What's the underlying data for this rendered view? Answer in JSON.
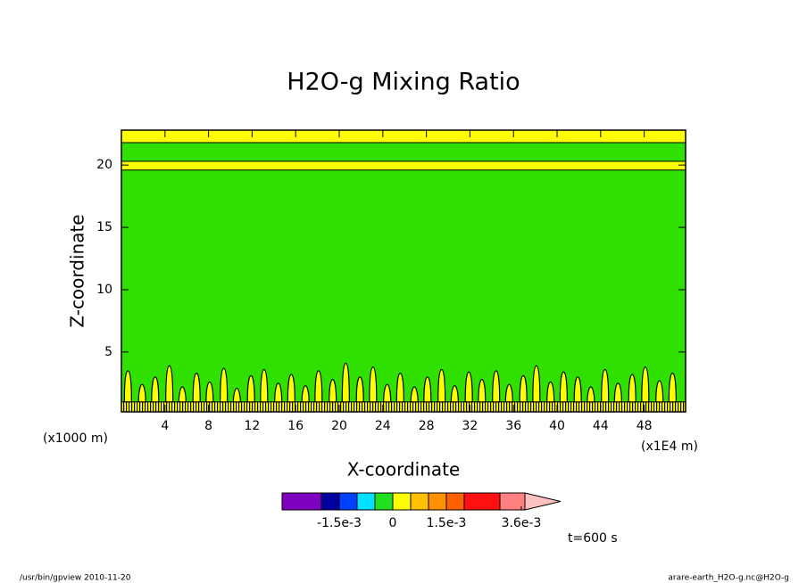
{
  "chart_data": {
    "type": "contour",
    "title": "H2O-g Mixing Ratio",
    "xlabel": "X-coordinate",
    "ylabel": "Z-coordinate",
    "xunit": "(x1000 m)",
    "xscale_note": "(x1E4 m)",
    "xlim": [
      0,
      51.8
    ],
    "ylim": [
      0.2,
      22.8
    ],
    "xticks": [
      4,
      8,
      12,
      16,
      20,
      24,
      28,
      32,
      36,
      40,
      44,
      48
    ],
    "yticks": [
      5,
      10,
      15,
      20
    ],
    "background_color": "#30e000",
    "bands": [
      {
        "y": [
          0.2,
          1.0
        ],
        "color": "#ffff00",
        "hatched": true
      },
      {
        "y": [
          19.6,
          20.3
        ],
        "color": "#ffff00",
        "hatched": false
      },
      {
        "y": [
          21.8,
          22.8
        ],
        "color": "#ffff00",
        "hatched": false
      }
    ],
    "plumes": {
      "color": "#ffff00",
      "x": [
        0.6,
        1.9,
        3.1,
        4.4,
        5.6,
        6.9,
        8.1,
        9.4,
        10.6,
        11.9,
        13.1,
        14.4,
        15.6,
        16.9,
        18.1,
        19.4,
        20.6,
        21.9,
        23.1,
        24.4,
        25.6,
        26.9,
        28.1,
        29.4,
        30.6,
        31.9,
        33.1,
        34.4,
        35.6,
        36.9,
        38.1,
        39.4,
        40.6,
        41.9,
        43.1,
        44.4,
        45.6,
        46.9,
        48.1,
        49.4,
        50.6
      ],
      "height": [
        3.5,
        2.4,
        3.0,
        3.9,
        2.2,
        3.3,
        2.6,
        3.7,
        2.1,
        3.1,
        3.6,
        2.5,
        3.2,
        2.3,
        3.5,
        2.8,
        4.1,
        3.0,
        3.8,
        2.4,
        3.3,
        2.2,
        3.0,
        3.6,
        2.3,
        3.4,
        2.8,
        3.5,
        2.4,
        3.1,
        3.9,
        2.6,
        3.4,
        3.0,
        2.2,
        3.6,
        2.5,
        3.2,
        3.8,
        2.7,
        3.3
      ]
    },
    "colorbar": {
      "bounds": [
        -0.0031,
        -0.002,
        -0.0015,
        -0.001,
        -0.0005,
        0,
        0.0005,
        0.001,
        0.0015,
        0.002,
        0.003,
        0.0037
      ],
      "colors": [
        "#8000c0",
        "#0000a0",
        "#0040ff",
        "#00e0ff",
        "#20e020",
        "#ffff00",
        "#ffc000",
        "#ff9000",
        "#ff6000",
        "#ff1010",
        "#ff8080"
      ],
      "extend_color": "#ffc0c0",
      "ticks": [
        {
          "value": -0.0015,
          "label": "-1.5e-3"
        },
        0,
        {
          "value": 0.0015,
          "label": "1.5e-3"
        },
        {
          "value": 0.0036,
          "label": "3.6e-3"
        }
      ]
    },
    "time_label": "t=600 s",
    "footer_left": "/usr/bin/gpview  2010-11-20",
    "footer_right": "arare-earth_H2O-g.nc@H2O-g"
  }
}
